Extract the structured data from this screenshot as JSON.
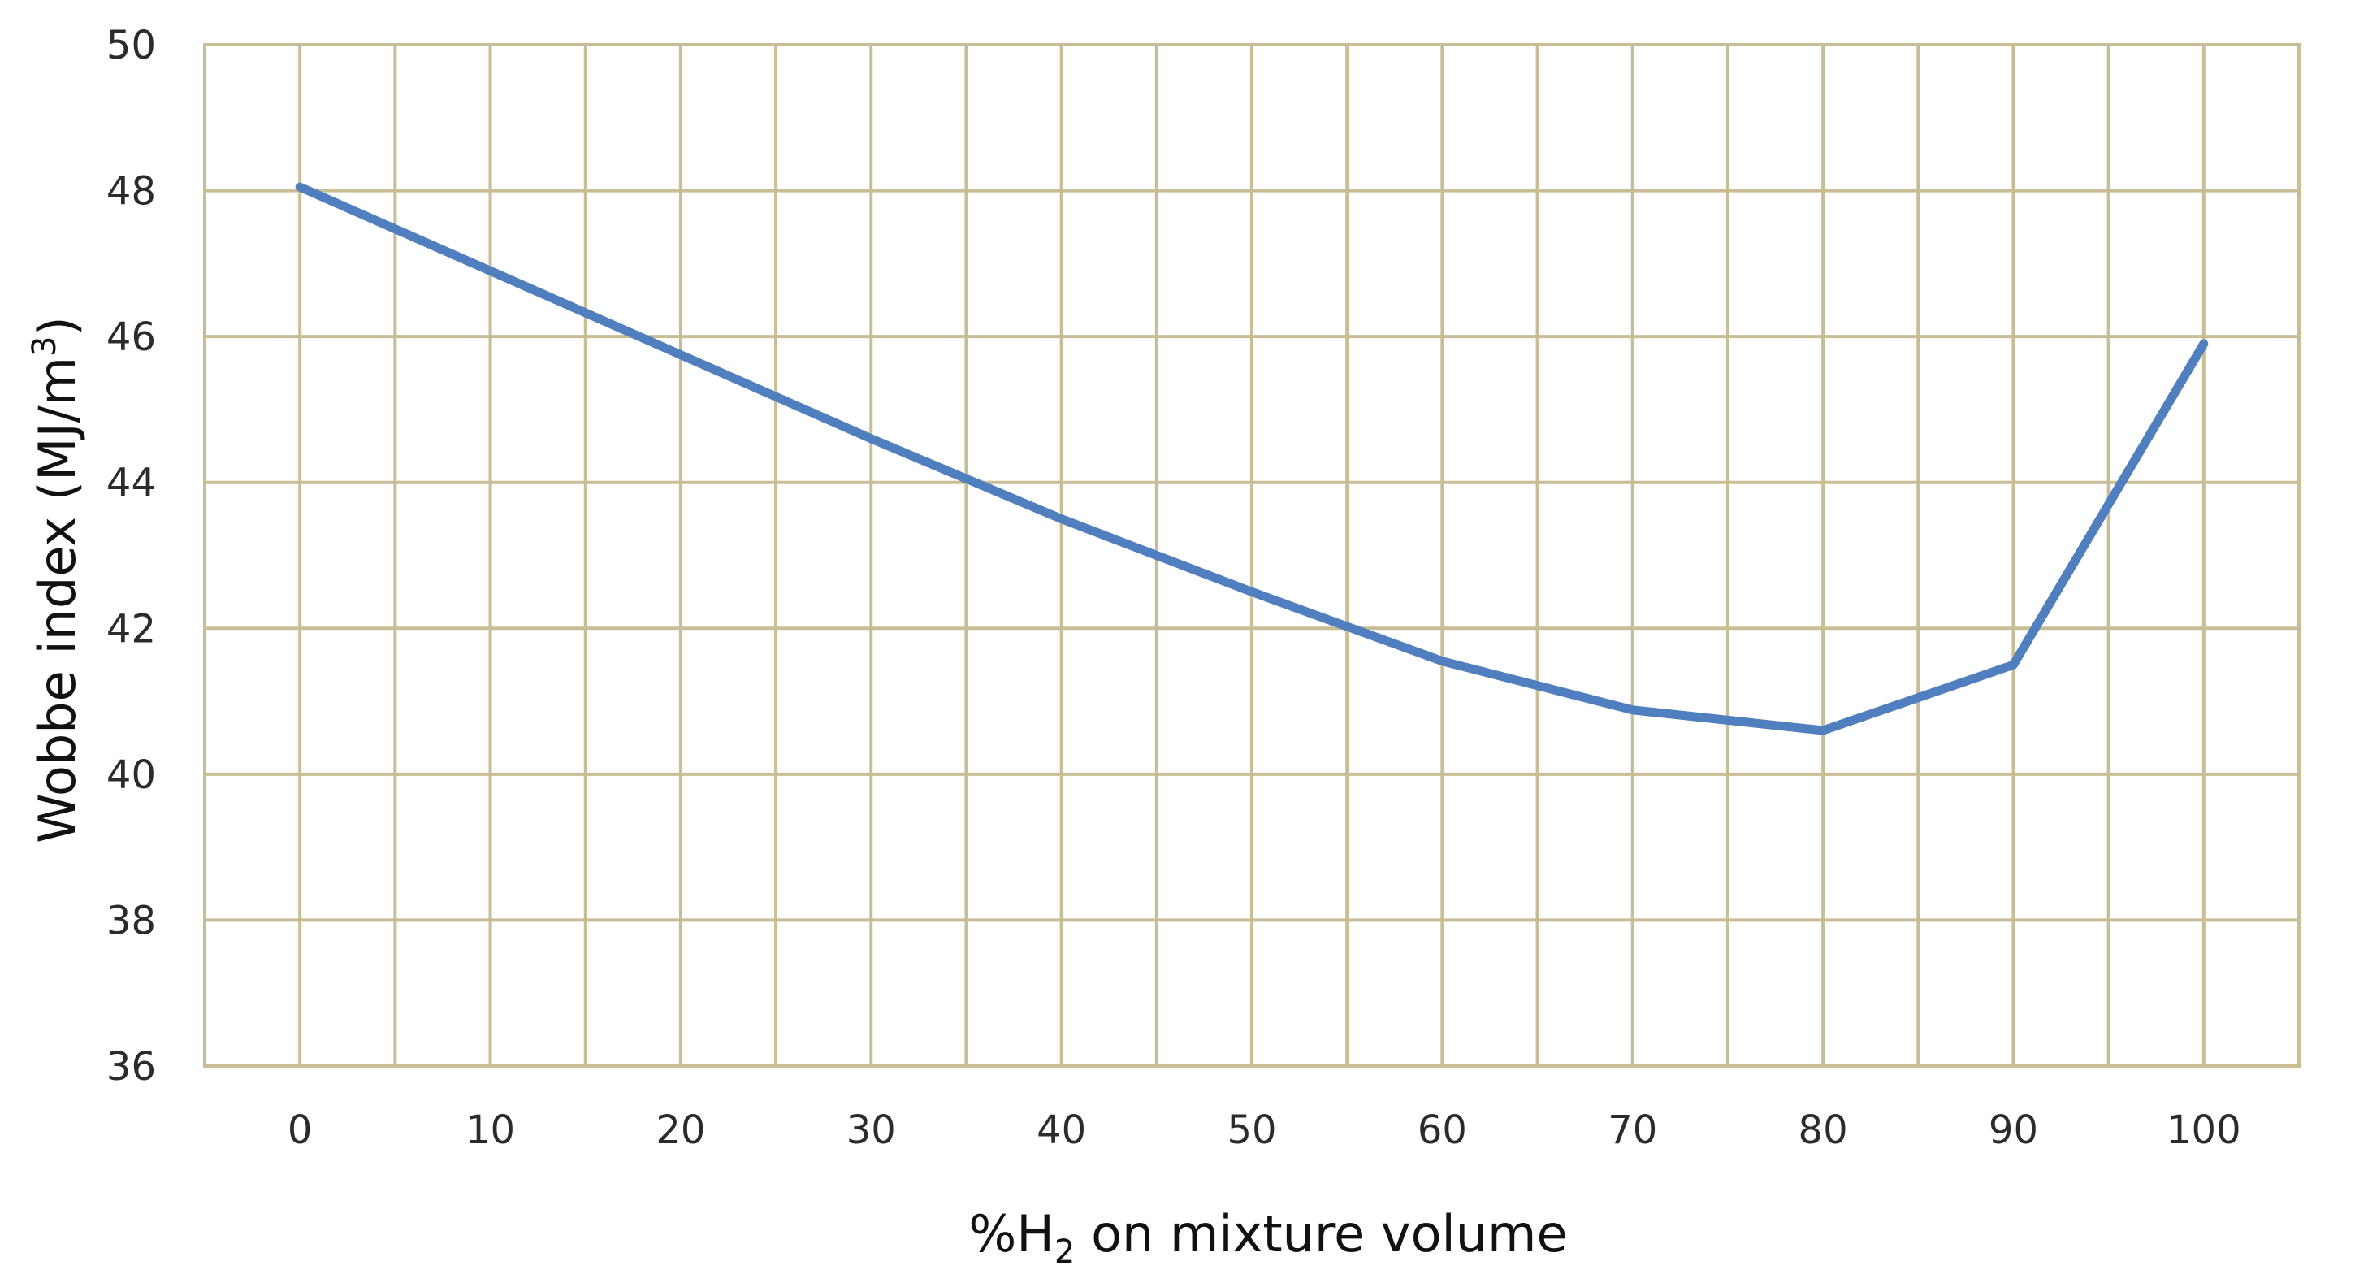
{
  "chart_data": {
    "type": "line",
    "title": "",
    "xlabel": {
      "text": "%H",
      "subscript": "2",
      "suffix": " on mixture volume"
    },
    "ylabel": {
      "text": "Wobbe index (MJ/m",
      "superscript": "3",
      "suffix": ")"
    },
    "xlim": [
      -5,
      105
    ],
    "ylim": [
      36,
      50
    ],
    "x_ticks": [
      0,
      10,
      20,
      30,
      40,
      50,
      60,
      70,
      80,
      90,
      100
    ],
    "y_ticks": [
      36,
      38,
      40,
      42,
      44,
      46,
      48,
      50
    ],
    "grid": true,
    "legend": "none",
    "series": [
      {
        "color": "#4f7fbf",
        "x": [
          0,
          10,
          20,
          30,
          40,
          50,
          60,
          70,
          80,
          90,
          100
        ],
        "y": [
          48.05,
          46.9,
          45.75,
          44.6,
          43.5,
          42.5,
          41.55,
          40.88,
          40.6,
          41.5,
          45.9
        ]
      }
    ],
    "colors": {
      "grid": "#c9bd95",
      "frame": "#c9bd95",
      "line": "#4f7fbf"
    }
  }
}
